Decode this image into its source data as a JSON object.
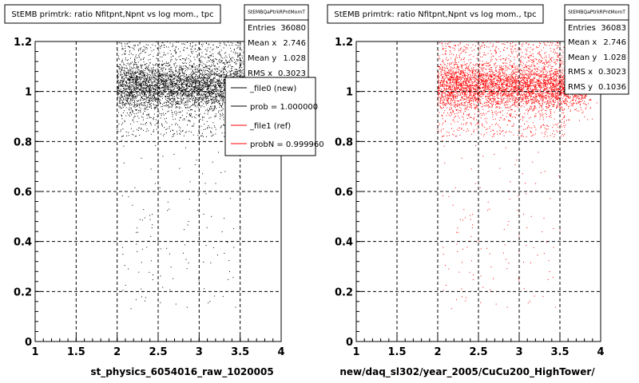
{
  "colors": {
    "left_points": "#000000",
    "right_points": "#ff0000",
    "grid": "#000000",
    "background": "#ffffff"
  },
  "chart_data": [
    {
      "type": "scatter",
      "title": "StEMB primtrk: ratio Nfitpnt,Npnt vs log mom., tpc",
      "xlabel": "st_physics_6054016_raw_1020005",
      "ylabel": "",
      "xlim": [
        1,
        4
      ],
      "ylim": [
        0,
        1.2
      ],
      "x_ticks": [
        "1",
        "1.5",
        "2",
        "2.5",
        "3",
        "3.5",
        "4"
      ],
      "y_ticks": [
        "0",
        "0.2",
        "0.4",
        "0.6",
        "0.8",
        "1",
        "1.2"
      ],
      "grid": true,
      "series_color": "#000000",
      "stats": {
        "name": "StEMBQaPtrkRPntMomT",
        "rows": [
          {
            "label": "Entries",
            "value": "36080"
          },
          {
            "label": "Mean x",
            "value": "2.746"
          },
          {
            "label": "Mean y",
            "value": "1.028"
          },
          {
            "label": "RMS x",
            "value": "0.3023"
          }
        ]
      },
      "legend": {
        "placement": "top-right",
        "entries": [
          {
            "label": "_file0 (new)",
            "color": "#000000"
          },
          {
            "label": "prob = 1.000000",
            "color": "#000000"
          },
          {
            "label": "_file1 (ref)",
            "color": "#ff0000"
          },
          {
            "label": "probN = 0.999960",
            "color": "#ff0000"
          }
        ]
      }
    },
    {
      "type": "scatter",
      "title": "StEMB primtrk: ratio Nfitpnt,Npnt vs log mom., tpc",
      "xlabel": "new/daq_sl302/year_2005/CuCu200_HighTower/",
      "ylabel": "",
      "xlim": [
        1,
        4
      ],
      "ylim": [
        0,
        1.2
      ],
      "x_ticks": [
        "1",
        "1.5",
        "2",
        "2.5",
        "3",
        "3.5",
        "4"
      ],
      "y_ticks": [
        "0",
        "0.2",
        "0.4",
        "0.6",
        "0.8",
        "1",
        "1.2"
      ],
      "grid": true,
      "series_color": "#ff0000",
      "stats": {
        "name": "StEMBQaPtrkRPntMomT",
        "rows": [
          {
            "label": "Entries",
            "value": "36083"
          },
          {
            "label": "Mean x",
            "value": "2.746"
          },
          {
            "label": "Mean y",
            "value": "1.028"
          },
          {
            "label": "RMS x",
            "value": "0.3023"
          },
          {
            "label": "RMS y",
            "value": "0.1036"
          }
        ]
      }
    }
  ]
}
